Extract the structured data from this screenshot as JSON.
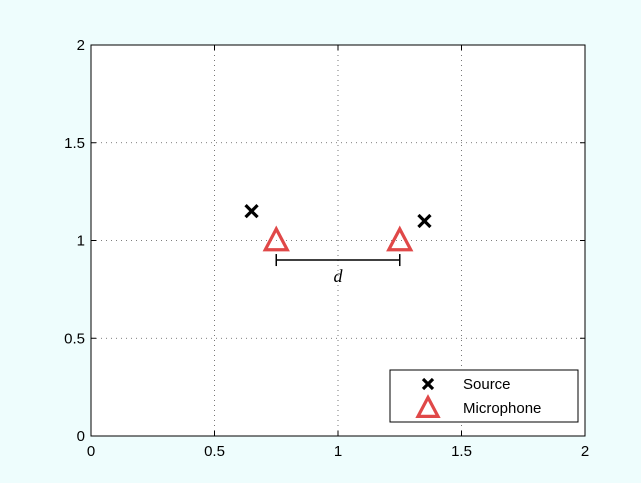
{
  "chart_data": {
    "type": "scatter",
    "xlim": [
      0,
      2
    ],
    "ylim": [
      0,
      2
    ],
    "grid": true,
    "legend_position": "bottom-right",
    "x_ticks": [
      "0",
      "0.5",
      "1",
      "1.5",
      "2"
    ],
    "y_ticks": [
      "0",
      "0.5",
      "1",
      "1.5",
      "2"
    ],
    "series": [
      {
        "name": "Source",
        "marker": "x",
        "color": "#000000",
        "points": [
          {
            "x": 0.65,
            "y": 1.15
          },
          {
            "x": 1.35,
            "y": 1.1
          }
        ]
      },
      {
        "name": "Microphone",
        "marker": "triangle",
        "color": "#e04848",
        "points": [
          {
            "x": 0.75,
            "y": 1.0
          },
          {
            "x": 1.25,
            "y": 1.0
          }
        ]
      }
    ],
    "annotations": [
      {
        "type": "dimension",
        "from": {
          "x": 0.75,
          "y": 0.9
        },
        "to": {
          "x": 1.25,
          "y": 0.9
        },
        "label": "d"
      }
    ]
  }
}
